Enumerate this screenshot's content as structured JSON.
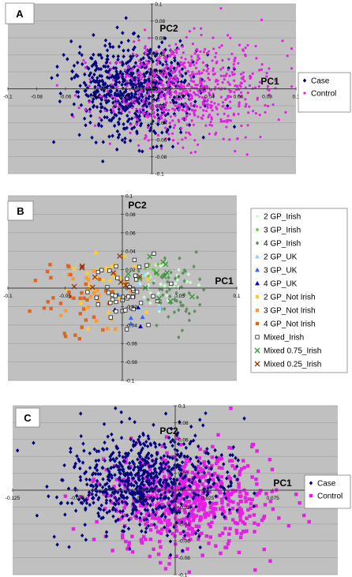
{
  "colors": {
    "plot_bg": "#c0c0c0",
    "grid": "#a6a6a6",
    "axis": "#404040",
    "case": "#000080",
    "control": "#e61ee6"
  },
  "chart_data": [
    {
      "panel": "A",
      "type": "scatter",
      "xlabel": "PC1",
      "ylabel": "PC2",
      "xlim": [
        -0.1,
        0.1
      ],
      "ylim": [
        -0.1,
        0.1
      ],
      "xticks": [
        "-0.1",
        "-0.08",
        "-0.06",
        "-0.04",
        "-0.02",
        "0",
        "0.02",
        "0.04",
        "0.06",
        "0.08",
        "0.1"
      ],
      "yticks": [
        "0.1",
        "0.08",
        "0.06",
        "0.04",
        "0.02",
        "0",
        "-0.02",
        "-0.04",
        "-0.06",
        "-0.08",
        "-0.1"
      ],
      "legend": [
        {
          "name": "Case",
          "color": "#000080",
          "marker": "diamond"
        },
        {
          "name": "Control",
          "color": "#e61ee6",
          "marker": "circle"
        }
      ],
      "series": [
        {
          "name": "Case",
          "n": 700,
          "mean": [
            -0.012,
            0.0
          ],
          "sd": [
            0.022,
            0.028
          ]
        },
        {
          "name": "Control",
          "n": 700,
          "mean": [
            0.022,
            0.0
          ],
          "sd": [
            0.028,
            0.028
          ]
        }
      ],
      "legend_position": "right"
    },
    {
      "panel": "B",
      "type": "scatter",
      "xlabel": "PC1",
      "ylabel": "PC2",
      "xlim": [
        -0.1,
        0.1
      ],
      "ylim": [
        -0.1,
        0.1
      ],
      "xticks": [
        "-0.1",
        "-0.05",
        "0",
        "0.05",
        "0.1"
      ],
      "yticks": [
        "0.1",
        "0.08",
        "0.06",
        "0.04",
        "0.02",
        "0",
        "-0.02",
        "-0.04",
        "-0.06",
        "-0.08",
        "-0.1"
      ],
      "legend": [
        {
          "name": "2 GP_Irish",
          "color": "#ccffcc",
          "marker": "diamond"
        },
        {
          "name": "3 GP_Irish",
          "color": "#66cc33",
          "marker": "diamond"
        },
        {
          "name": "4 GP_Irish",
          "color": "#5f8f5f",
          "marker": "diamond"
        },
        {
          "name": "2 GP_UK",
          "color": "#99ccff",
          "marker": "triangle"
        },
        {
          "name": "3 GP_UK",
          "color": "#3366ff",
          "marker": "triangle"
        },
        {
          "name": "4 GP_UK",
          "color": "#0000cc",
          "marker": "triangle"
        },
        {
          "name": "2 GP_Not Irish",
          "color": "#ffcc33",
          "marker": "square"
        },
        {
          "name": "3 GP_Not Irish",
          "color": "#ff9933",
          "marker": "square"
        },
        {
          "name": "4 GP_Not Irish",
          "color": "#dd6622",
          "marker": "square"
        },
        {
          "name": "Mixed_Irish",
          "color": "#ffffff",
          "marker": "square-outline"
        },
        {
          "name": "Mixed 0.75_Irish",
          "color": "#339933",
          "marker": "x"
        },
        {
          "name": "Mixed 0.25_Irish",
          "color": "#993300",
          "marker": "x"
        }
      ],
      "series": [
        {
          "name": "2 GP_Irish",
          "n": 40,
          "mean": [
            0.035,
            0.005
          ],
          "sd": [
            0.012,
            0.012
          ]
        },
        {
          "name": "3 GP_Irish",
          "n": 8,
          "mean": [
            0.03,
            0.02
          ],
          "sd": [
            0.008,
            0.008
          ]
        },
        {
          "name": "4 GP_Irish",
          "n": 55,
          "mean": [
            0.048,
            -0.01
          ],
          "sd": [
            0.012,
            0.016
          ]
        },
        {
          "name": "2 GP_UK",
          "n": 5,
          "mean": [
            0.02,
            0.0
          ],
          "sd": [
            0.012,
            0.012
          ]
        },
        {
          "name": "3 GP_UK",
          "n": 4,
          "mean": [
            0.0,
            -0.025
          ],
          "sd": [
            0.01,
            0.01
          ]
        },
        {
          "name": "4 GP_UK",
          "n": 3,
          "mean": [
            0.005,
            -0.03
          ],
          "sd": [
            0.008,
            0.008
          ]
        },
        {
          "name": "2 GP_Not Irish",
          "n": 30,
          "mean": [
            -0.015,
            0.005
          ],
          "sd": [
            0.014,
            0.018
          ]
        },
        {
          "name": "3 GP_Not Irish",
          "n": 25,
          "mean": [
            -0.025,
            -0.005
          ],
          "sd": [
            0.016,
            0.02
          ]
        },
        {
          "name": "4 GP_Not Irish",
          "n": 35,
          "mean": [
            -0.045,
            -0.01
          ],
          "sd": [
            0.016,
            0.024
          ]
        },
        {
          "name": "Mixed_Irish",
          "n": 45,
          "mean": [
            0.005,
            0.0
          ],
          "sd": [
            0.016,
            0.018
          ]
        },
        {
          "name": "Mixed 0.75_Irish",
          "n": 12,
          "mean": [
            0.03,
            0.01
          ],
          "sd": [
            0.01,
            0.012
          ]
        },
        {
          "name": "Mixed 0.25_Irish",
          "n": 10,
          "mean": [
            -0.015,
            0.005
          ],
          "sd": [
            0.014,
            0.012
          ]
        }
      ],
      "legend_position": "right"
    },
    {
      "panel": "C",
      "type": "scatter",
      "xlabel": "PC1",
      "ylabel": "PC2",
      "xlim": [
        -0.125,
        0.125
      ],
      "ylim": [
        -0.1,
        0.1
      ],
      "xticks": [
        "-0.125",
        "-0.075",
        "-0.025",
        "0.025",
        "0.075",
        "0.125"
      ],
      "yticks": [
        "0.1",
        "0.08",
        "0.06",
        "0.04",
        "0.02",
        "0",
        "-0.02",
        "-0.04",
        "-0.06",
        "-0.08",
        "-0.1"
      ],
      "legend": [
        {
          "name": "Case",
          "color": "#000080",
          "marker": "diamond"
        },
        {
          "name": "Control",
          "color": "#e61ee6",
          "marker": "square"
        }
      ],
      "series": [
        {
          "name": "Control",
          "n": 650,
          "mean": [
            0.01,
            -0.01
          ],
          "sd": [
            0.035,
            0.03
          ]
        },
        {
          "name": "Case",
          "n": 750,
          "mean": [
            -0.025,
            0.01
          ],
          "sd": [
            0.03,
            0.03
          ]
        }
      ],
      "legend_position": "right"
    }
  ]
}
